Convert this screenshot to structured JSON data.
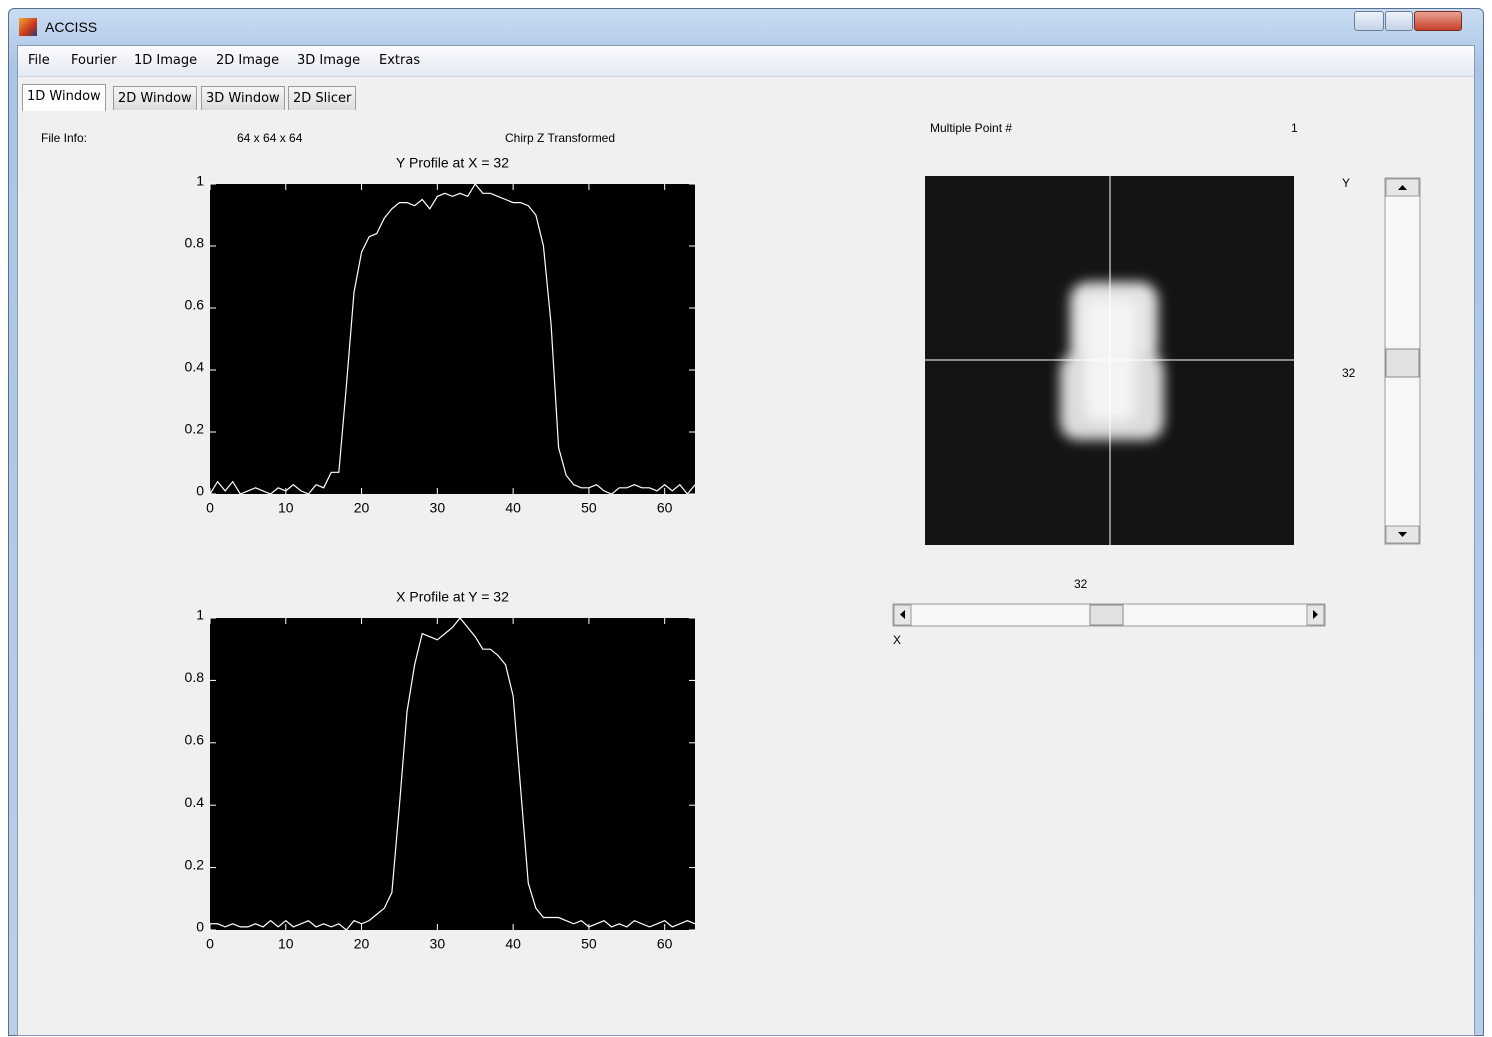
{
  "window": {
    "title": "ACCISS"
  },
  "menu": [
    "File",
    "Fourier",
    "1D Image",
    "2D Image",
    "3D Image",
    "Extras"
  ],
  "tabs": [
    "1D Window",
    "2D Window",
    "3D Window",
    "2D Slicer"
  ],
  "file_info": {
    "label": "File Info:",
    "size": "64 x 64 x 64",
    "transform": "Chirp Z Transformed"
  },
  "multiple_point": {
    "label": "Multiple Point #",
    "value": 1
  },
  "sliders": {
    "y_label": "Y",
    "y_value": 32,
    "x_label": "X",
    "x_value": 32
  },
  "chart_data": [
    {
      "type": "line",
      "title": "Y Profile at X = 32",
      "x": [
        0,
        1,
        2,
        3,
        4,
        5,
        6,
        7,
        8,
        9,
        10,
        11,
        12,
        13,
        14,
        15,
        16,
        17,
        18,
        19,
        20,
        21,
        22,
        23,
        24,
        25,
        26,
        27,
        28,
        29,
        30,
        31,
        32,
        33,
        34,
        35,
        36,
        37,
        38,
        39,
        40,
        41,
        42,
        43,
        44,
        45,
        46,
        47,
        48,
        49,
        50,
        51,
        52,
        53,
        54,
        55,
        56,
        57,
        58,
        59,
        60,
        61,
        62,
        63,
        64
      ],
      "series": [
        {
          "color": "#ffffff",
          "values": [
            0.0,
            0.04,
            0.01,
            0.04,
            0.0,
            0.01,
            0.02,
            0.01,
            0.0,
            0.02,
            0.01,
            0.03,
            0.01,
            0.0,
            0.03,
            0.02,
            0.07,
            0.07,
            0.35,
            0.65,
            0.78,
            0.83,
            0.84,
            0.89,
            0.92,
            0.94,
            0.94,
            0.93,
            0.95,
            0.92,
            0.96,
            0.97,
            0.96,
            0.97,
            0.96,
            1.0,
            0.97,
            0.97,
            0.96,
            0.95,
            0.94,
            0.94,
            0.93,
            0.9,
            0.8,
            0.55,
            0.15,
            0.06,
            0.03,
            0.02,
            0.02,
            0.03,
            0.01,
            0.0,
            0.02,
            0.02,
            0.03,
            0.02,
            0.02,
            0.01,
            0.03,
            0.01,
            0.03,
            0.0,
            0.03
          ]
        }
      ],
      "xlim": [
        0,
        64
      ],
      "ylim": [
        0,
        1
      ],
      "xticks": [
        0,
        10,
        20,
        30,
        40,
        50,
        60
      ],
      "yticks": [
        0,
        0.2,
        0.4,
        0.6,
        0.8,
        1
      ]
    },
    {
      "type": "line",
      "title": "X Profile at Y = 32",
      "x": [
        0,
        1,
        2,
        3,
        4,
        5,
        6,
        7,
        8,
        9,
        10,
        11,
        12,
        13,
        14,
        15,
        16,
        17,
        18,
        19,
        20,
        21,
        22,
        23,
        24,
        25,
        26,
        27,
        28,
        29,
        30,
        31,
        32,
        33,
        34,
        35,
        36,
        37,
        38,
        39,
        40,
        41,
        42,
        43,
        44,
        45,
        46,
        47,
        48,
        49,
        50,
        51,
        52,
        53,
        54,
        55,
        56,
        57,
        58,
        59,
        60,
        61,
        62,
        63,
        64
      ],
      "series": [
        {
          "color": "#ffffff",
          "values": [
            0.02,
            0.02,
            0.01,
            0.02,
            0.01,
            0.01,
            0.02,
            0.01,
            0.03,
            0.01,
            0.03,
            0.01,
            0.02,
            0.03,
            0.01,
            0.02,
            0.01,
            0.02,
            0.0,
            0.03,
            0.02,
            0.03,
            0.05,
            0.07,
            0.12,
            0.4,
            0.7,
            0.85,
            0.95,
            0.94,
            0.93,
            0.95,
            0.97,
            1.0,
            0.97,
            0.94,
            0.9,
            0.9,
            0.88,
            0.85,
            0.75,
            0.45,
            0.15,
            0.07,
            0.04,
            0.04,
            0.04,
            0.03,
            0.02,
            0.03,
            0.01,
            0.02,
            0.03,
            0.01,
            0.02,
            0.01,
            0.03,
            0.02,
            0.01,
            0.02,
            0.03,
            0.01,
            0.02,
            0.03,
            0.02
          ]
        }
      ],
      "xlim": [
        0,
        64
      ],
      "ylim": [
        0,
        1
      ],
      "xticks": [
        0,
        10,
        20,
        30,
        40,
        50,
        60
      ],
      "yticks": [
        0,
        0.2,
        0.4,
        0.6,
        0.8,
        1
      ]
    }
  ]
}
